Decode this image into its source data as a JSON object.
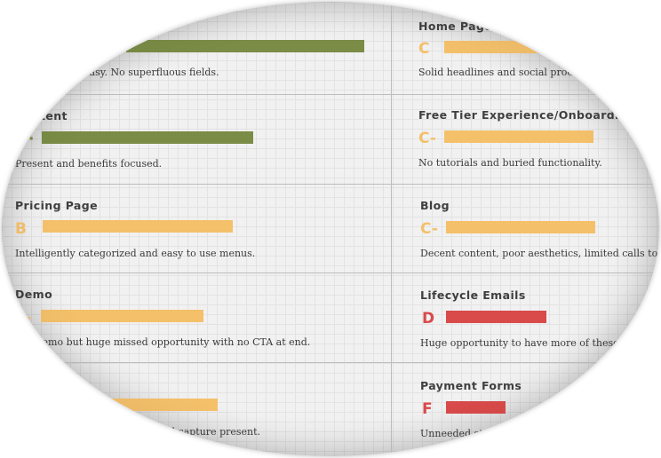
{
  "colors": {
    "green": "#7a8c45",
    "yellow": "#f4c06a",
    "red": "#d94a4a"
  },
  "cards": [
    {
      "id": "signup-form",
      "title": "",
      "grade": "",
      "desc": "easy. No superfluous fields.",
      "level_pct": 0.88,
      "color": "green"
    },
    {
      "id": "content",
      "title": "tent",
      "grade": "·",
      "desc": "Present and benefits focused.",
      "level_pct": 0.78,
      "color": "green"
    },
    {
      "id": "pricing-page",
      "title": "Pricing Page",
      "grade": "B",
      "desc": "Intelligently categorized and easy to use menus.",
      "level_pct": 0.7,
      "color": "yellow"
    },
    {
      "id": "demo",
      "title": "Demo",
      "grade": "-",
      "desc": "lemo but huge missed opportunity with no CTA at end.",
      "level_pct": 0.6,
      "color": "yellow"
    },
    {
      "id": "lead-capture",
      "title": "",
      "grade": "",
      "desc": "d capture present.",
      "level_pct": 0.5,
      "color": "yellow"
    },
    {
      "id": "home-page",
      "title": "Home Page",
      "grade": "C",
      "desc": "Solid headlines and social proof, po",
      "level_pct": 0.6,
      "color": "yellow"
    },
    {
      "id": "free-tier",
      "title": "Free Tier Experience/Onboarding",
      "grade": "C-",
      "desc": "No tutorials and buried functionality.",
      "level_pct": 0.55,
      "color": "yellow"
    },
    {
      "id": "blog",
      "title": "Blog",
      "grade": "C-",
      "desc": "Decent content, poor aesthetics, limited calls to action.",
      "level_pct": 0.55,
      "color": "yellow"
    },
    {
      "id": "lifecycle-emails",
      "title": "Lifecycle Emails",
      "grade": "D",
      "desc": "Huge opportunity to have more of these and b",
      "level_pct": 0.37,
      "color": "red"
    },
    {
      "id": "payment-forms",
      "title": "Payment Forms",
      "grade": "F",
      "desc": "Unneeded ste",
      "level_pct": 0.22,
      "color": "red"
    }
  ]
}
